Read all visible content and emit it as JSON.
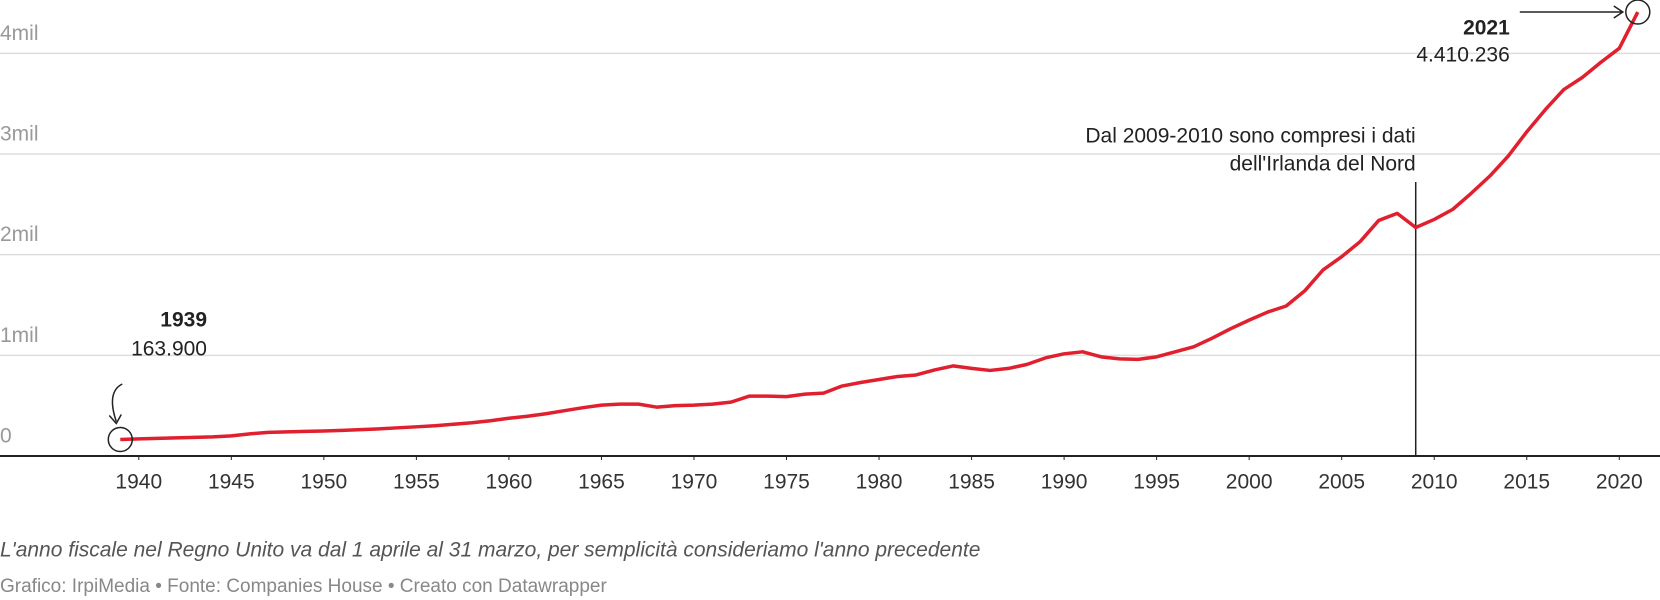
{
  "chart_data": {
    "type": "line",
    "x": [
      1939,
      1940,
      1941,
      1942,
      1943,
      1944,
      1945,
      1946,
      1947,
      1948,
      1949,
      1950,
      1951,
      1952,
      1953,
      1954,
      1955,
      1956,
      1957,
      1958,
      1959,
      1960,
      1961,
      1962,
      1963,
      1964,
      1965,
      1966,
      1967,
      1968,
      1969,
      1970,
      1971,
      1972,
      1973,
      1974,
      1975,
      1976,
      1977,
      1978,
      1979,
      1980,
      1981,
      1982,
      1983,
      1984,
      1985,
      1986,
      1987,
      1988,
      1989,
      1990,
      1991,
      1992,
      1993,
      1994,
      1995,
      1996,
      1997,
      1998,
      1999,
      2000,
      2001,
      2002,
      2003,
      2004,
      2005,
      2006,
      2007,
      2008,
      2009,
      2010,
      2011,
      2012,
      2013,
      2014,
      2015,
      2016,
      2017,
      2018,
      2019,
      2020,
      2021
    ],
    "series": [
      {
        "color": "#e0202e",
        "values": [
          163900,
          170000,
          175000,
          180000,
          185000,
          190000,
          200000,
          220000,
          235000,
          240000,
          245000,
          248000,
          255000,
          262000,
          270000,
          280000,
          290000,
          300000,
          315000,
          330000,
          350000,
          375000,
          395000,
          420000,
          450000,
          480000,
          505000,
          515000,
          515000,
          485000,
          500000,
          505000,
          515000,
          535000,
          595000,
          595000,
          590000,
          615000,
          625000,
          695000,
          730000,
          760000,
          790000,
          805000,
          855000,
          895000,
          870000,
          850000,
          870000,
          910000,
          975000,
          1015000,
          1035000,
          985000,
          965000,
          960000,
          985000,
          1035000,
          1085000,
          1170000,
          1265000,
          1350000,
          1430000,
          1490000,
          1640000,
          1850000,
          1980000,
          2130000,
          2340000,
          2410000,
          2270000,
          2350000,
          2450000,
          2610000,
          2780000,
          2980000,
          3220000,
          3440000,
          3640000,
          3760000,
          3910000,
          4050000,
          4410236
        ]
      }
    ],
    "xlim": [
      1932.5,
      2022.2
    ],
    "xticks": [
      1940,
      1945,
      1950,
      1955,
      1960,
      1965,
      1970,
      1975,
      1980,
      1985,
      1990,
      1995,
      2000,
      2005,
      2010,
      2015,
      2020
    ],
    "ylim": [
      0,
      4500000
    ],
    "yticks": [
      0,
      {
        "value": 1000000,
        "label": "1mil"
      },
      {
        "value": 2000000,
        "label": "2mil"
      },
      {
        "value": 3000000,
        "label": "3mil"
      },
      {
        "value": 4000000,
        "label": "4mil"
      }
    ],
    "grid": true,
    "annotations": [
      {
        "x": 1939,
        "value": 163900,
        "value_label": "163.900"
      },
      {
        "x": 2021,
        "value": 4410236,
        "value_label": "4.410.236"
      }
    ],
    "vline": {
      "x": 2009,
      "text": [
        "Dal 2009-2010 sono compresi i dati",
        "dell'Irlanda del Nord"
      ]
    },
    "note": "L'anno fiscale nel Regno Unito va dal 1 aprile al 31 marzo, per semplicità consideriamo l'anno precedente",
    "source": "Grafico: IrpiMedia • Fonte: Companies House • Creato con Datawrapper"
  }
}
